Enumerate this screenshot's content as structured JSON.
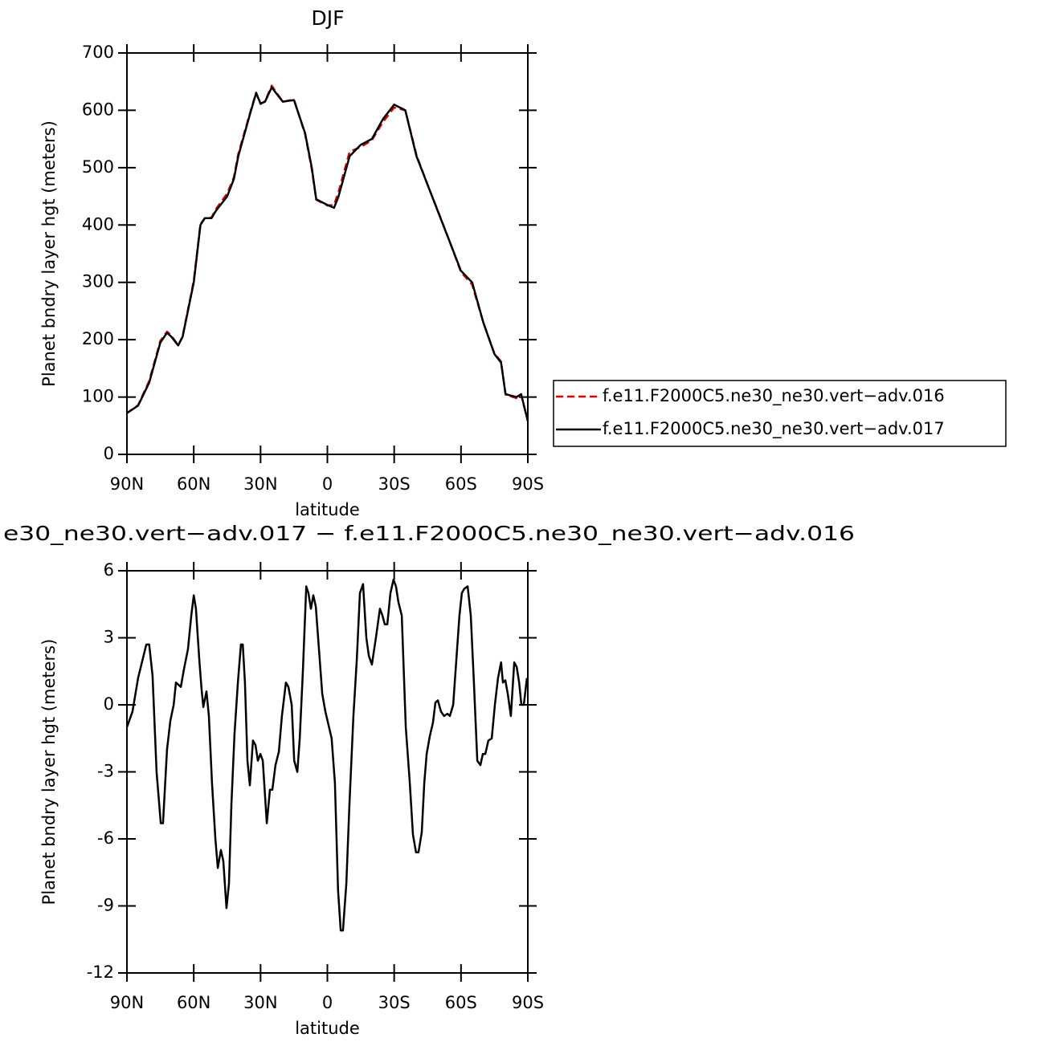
{
  "chart_data": [
    {
      "type": "line",
      "title": "DJF",
      "xlabel": "latitude",
      "ylabel": "Planet bndry layer hgt (meters)",
      "xlim": [
        90,
        -90
      ],
      "ylim": [
        0,
        700
      ],
      "xticks": [
        {
          "value": 90,
          "label": "90N"
        },
        {
          "value": 60,
          "label": "60N"
        },
        {
          "value": 30,
          "label": "30N"
        },
        0,
        {
          "value": -30,
          "label": "30S"
        },
        {
          "value": -60,
          "label": "60S"
        },
        {
          "value": -90,
          "label": "90S"
        }
      ],
      "yticks": [
        0,
        100,
        200,
        300,
        400,
        500,
        600,
        700
      ],
      "x": [
        90,
        85,
        80,
        75,
        72,
        70,
        67,
        65,
        60,
        57,
        55,
        52,
        50,
        45,
        42,
        40,
        35,
        32,
        30,
        28,
        25,
        22,
        20,
        15,
        10,
        7,
        5,
        0,
        -3,
        -5,
        -10,
        -15,
        -20,
        -25,
        -30,
        -35,
        -40,
        -45,
        -50,
        -55,
        -60,
        -65,
        -70,
        -75,
        -78,
        -80,
        -85,
        -87,
        -90
      ],
      "series": [
        {
          "name": "f.e11.F2000C5.ne30_ne30.vert−adv.016",
          "color": "#e00000",
          "line_style": "dashed",
          "values": [
            72,
            86,
            128,
            198,
            214,
            207,
            190,
            206,
            303,
            402,
            412,
            413,
            428,
            455,
            483,
            524,
            592,
            631,
            611,
            616,
            643,
            626,
            615,
            619,
            558,
            497,
            444,
            434,
            435,
            458,
            528,
            536,
            548,
            580,
            605,
            600,
            522,
            470,
            421,
            370,
            318,
            296,
            230,
            176,
            162,
            104,
            98,
            104,
            58
          ]
        },
        {
          "name": "f.e11.F2000C5.ne30_ne30.vert−adv.017",
          "color": "#000000",
          "line_style": "solid",
          "values": [
            72,
            85,
            125,
            195,
            212,
            205,
            190,
            205,
            300,
            400,
            412,
            412,
            425,
            450,
            480,
            520,
            590,
            630,
            612,
            615,
            640,
            625,
            615,
            618,
            560,
            500,
            445,
            435,
            430,
            450,
            520,
            540,
            550,
            585,
            610,
            600,
            520,
            470,
            420,
            370,
            320,
            300,
            230,
            175,
            160,
            105,
            100,
            105,
            58
          ]
        }
      ]
    },
    {
      "type": "line",
      "title": "e30_ne30.vert−adv.017 − f.e11.F2000C5.ne30_ne30.vert−adv.016",
      "xlabel": "latitude",
      "ylabel": "Planet bndry layer hgt (meters)",
      "xlim": [
        90,
        -90
      ],
      "ylim": [
        -12,
        6
      ],
      "xticks": [
        {
          "value": 90,
          "label": "90N"
        },
        {
          "value": 60,
          "label": "60N"
        },
        {
          "value": 30,
          "label": "30N"
        },
        0,
        {
          "value": -30,
          "label": "30S"
        },
        {
          "value": -60,
          "label": "60S"
        },
        {
          "value": -90,
          "label": "90S"
        }
      ],
      "yticks": [
        -12,
        -9,
        -6,
        -3,
        0,
        3,
        6
      ],
      "x": [
        90,
        87.5,
        85,
        81.3,
        80,
        78.5,
        76.7,
        74.8,
        73.8,
        72,
        70.5,
        69,
        68,
        65.8,
        64.4,
        62.6,
        61.1,
        60,
        59,
        57.5,
        56.5,
        55.7,
        54.3,
        53.2,
        51.8,
        50.3,
        49.2,
        47.8,
        46.7,
        45.3,
        44.2,
        43.1,
        41.7,
        40.2,
        38.8,
        38,
        37,
        35.9,
        34.8,
        33.4,
        32.3,
        31.2,
        30.1,
        29,
        27.2,
        25.8,
        24.7,
        23.3,
        21.8,
        20.4,
        18.6,
        17.5,
        16,
        14.9,
        13.5,
        12.4,
        11,
        9.5,
        8.5,
        7.4,
        6.3,
        5.2,
        3.8,
        2.3,
        0.9,
        -0.5,
        -1.9,
        -3.4,
        -4.8,
        -6,
        -7,
        -8.5,
        -9.9,
        -11.7,
        -13.2,
        -14.6,
        -16,
        -17.5,
        -18.6,
        -20,
        -21.8,
        -23.6,
        -24.7,
        -25.8,
        -26.9,
        -28.3,
        -29.7,
        -30.8,
        -31.9,
        -33.4,
        -35.2,
        -37,
        -38.4,
        -39.8,
        -40.9,
        -42.4,
        -43.5,
        -44.6,
        -46,
        -47.4,
        -48.5,
        -49.6,
        -51,
        -52.4,
        -53.9,
        -55,
        -56.5,
        -57.9,
        -59.3,
        -60.4,
        -61.5,
        -63,
        -64.4,
        -65.8,
        -67.3,
        -68.7,
        -69.8,
        -70.9,
        -72.3,
        -73.8,
        -75.2,
        -76.6,
        -78,
        -78.8,
        -79.9,
        -81,
        -82.4,
        -83.9,
        -85,
        -86.1,
        -87.1,
        -88.2,
        -89.6
      ],
      "series": [
        {
          "name": null,
          "color": "#000000",
          "line_style": "solid",
          "values": [
            -1.0,
            -0.3,
            1.2,
            2.7,
            2.7,
            1.3,
            -3,
            -5.3,
            -5.3,
            -2,
            -0.7,
            0,
            1,
            0.8,
            1.6,
            2.5,
            4,
            4.9,
            4.3,
            2,
            0.7,
            -0.1,
            0.6,
            -0.5,
            -3.5,
            -6,
            -7.3,
            -6.5,
            -7,
            -9.1,
            -8,
            -4.5,
            -1.3,
            1,
            2.7,
            2.7,
            1,
            -2.5,
            -3.6,
            -1.6,
            -1.8,
            -2.5,
            -2.2,
            -2.5,
            -5.3,
            -3.8,
            -3.8,
            -2.7,
            -2.1,
            -0.5,
            1,
            0.8,
            0,
            -2.5,
            -3,
            -1.5,
            1.5,
            5.3,
            5,
            4.3,
            4.9,
            4.4,
            2.5,
            0.5,
            -0.3,
            -0.9,
            -1.5,
            -3.5,
            -8.3,
            -10.1,
            -10.1,
            -8,
            -4.5,
            -0.5,
            2,
            5,
            5.4,
            3,
            2.2,
            1.8,
            3,
            4.3,
            4,
            3.6,
            3.6,
            5,
            5.6,
            5.3,
            4.6,
            4,
            -1,
            -3.5,
            -5.8,
            -6.6,
            -6.6,
            -5.7,
            -3.5,
            -2.2,
            -1.4,
            -0.8,
            0.1,
            0.2,
            -0.3,
            -0.5,
            -0.4,
            -0.5,
            0,
            2,
            4,
            5,
            5.2,
            5.3,
            4,
            1,
            -2.5,
            -2.7,
            -2.2,
            -2.2,
            -1.6,
            -1.5,
            0,
            1.2,
            1.9,
            1,
            1.1,
            0.5,
            -0.5,
            1.9,
            1.7,
            1,
            0,
            0,
            1.2
          ]
        }
      ]
    }
  ]
}
